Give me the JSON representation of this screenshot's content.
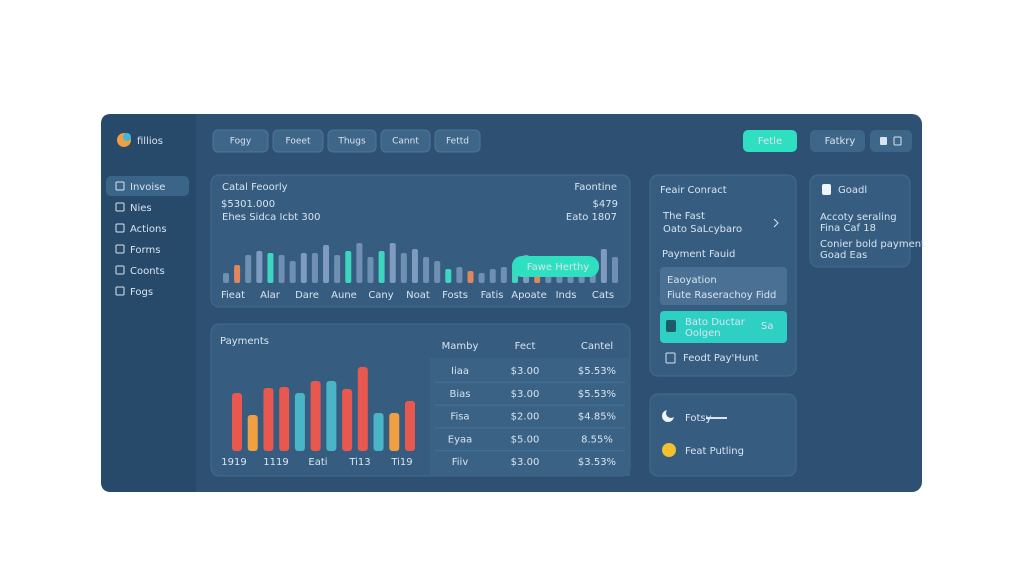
{
  "brand": "fillios",
  "nav": [
    "Invoise",
    "Nies",
    "Actions",
    "Forms",
    "Coonts",
    "Fogs"
  ],
  "toolbar": [
    "Fogy",
    "Foeet",
    "Thugs",
    "Cannt",
    "Fettd"
  ],
  "actions": [
    "Fetle",
    "Fatkry"
  ],
  "overview": {
    "label": "Catal Feoorly",
    "amount": "$5301.000",
    "note": "Ehes Sidca Icbt 300",
    "side_label": "Faontine",
    "side_amount": "$479",
    "side_note": "Eato 1807",
    "button": "Fawe Herthy",
    "axis_labels": [
      "Fieat",
      "Alar",
      "Dare",
      "Aune",
      "Cany",
      "Noat",
      "Fosts",
      "Fatis",
      "Apoate",
      "Inds",
      "Cats"
    ],
    "values": [
      10,
      18,
      28,
      32,
      30,
      28,
      22,
      30,
      30,
      38,
      28,
      32,
      40,
      26,
      32,
      40,
      30,
      34,
      26,
      22,
      14,
      16,
      12,
      10,
      14,
      16,
      18,
      28,
      10,
      12,
      14,
      16,
      18,
      22,
      34,
      26
    ],
    "colors": [
      "#6f90b2",
      "#e0875e",
      "#6f90b2",
      "#7f9cc0",
      "#3fd6c0",
      "#6f90b2",
      "#6f90b2",
      "#7f9cc0",
      "#6f90b2",
      "#7f9cc0",
      "#6f90b2",
      "#3fd6c0",
      "#6f90b2",
      "#6f90b2",
      "#3fd6c0",
      "#7f9cc0",
      "#6f90b2",
      "#7f9cc0",
      "#6f90b2",
      "#6f90b2",
      "#3fd6c0",
      "#6f90b2",
      "#e0875e",
      "#6f90b2",
      "#6f90b2",
      "#6f90b2",
      "#3fd6c0",
      "#7f9cc0",
      "#e0875e",
      "#6f90b2",
      "#6f90b2",
      "#6f90b2",
      "#6f90b2",
      "#6f90b2",
      "#7f9cc0",
      "#6f90b2"
    ]
  },
  "payments": {
    "title": "Payments",
    "columns": [
      "Mamby",
      "Fect",
      "Cantel"
    ],
    "rows": [
      [
        "Iiaa",
        "$3.00",
        "$5.53%"
      ],
      [
        "Bias",
        "$3.00",
        "$5.53%"
      ],
      [
        "Fisa",
        "$2.00",
        "$4.85%"
      ],
      [
        "Eyaa",
        "$5.00",
        "8.55%"
      ],
      [
        "Fiiv",
        "$3.00",
        "$3.53%"
      ]
    ],
    "chart": {
      "labels": [
        "1919",
        "1119",
        "Eati",
        "Ti13",
        "Ti19"
      ],
      "values": [
        58,
        36,
        63,
        64,
        58,
        70,
        70,
        62,
        84,
        38,
        38,
        50
      ],
      "colors": [
        "#e9584f",
        "#f0a040",
        "#e9584f",
        "#e9584f",
        "#4bb5c8",
        "#e9584f",
        "#4bb5c8",
        "#e9584f",
        "#e9584f",
        "#4bb5c8",
        "#f0a040",
        "#e9584f"
      ]
    }
  },
  "contract": {
    "title": "Feair Conract",
    "line1": "The Fast",
    "line2": "Oato SaLcybaro",
    "section": "Payment Fauid",
    "box_title": "Eaoyation",
    "box_note": "Fiute Raserachoy Fidd",
    "active_title": "Bato Ductar",
    "active_note": "Oolgen",
    "active_tag": "Sa",
    "footer": "Feodt Pay'Hunt"
  },
  "status": {
    "item1": "Fotsy",
    "item2": "Feat Putling"
  },
  "goal": {
    "title": "Goadl",
    "line1": "Accoty seraling",
    "line2": "Fina Caf 18",
    "line3": "Conier bold payment",
    "line4": "Goad Eas"
  }
}
